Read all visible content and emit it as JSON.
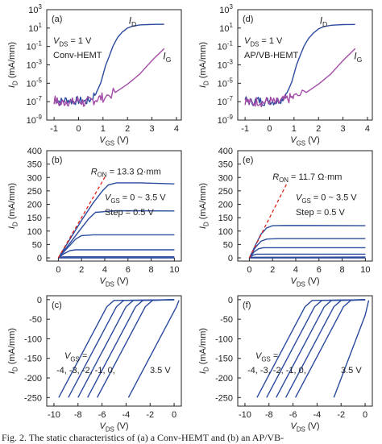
{
  "caption": "Fig. 2. The static characteristics of (a) a Conv-HEMT and (b) an AP/VB-",
  "colors": {
    "id_curve": "#2a4a9e",
    "ig_curve": "#a24aa6",
    "ron_line": "#e2231a",
    "axis": "#222222"
  },
  "chart_data": [
    {
      "panel": "(a)",
      "type": "line",
      "ylabel": "ID (mA/mm)",
      "xlabel": "VGS (V)",
      "yscale": "log",
      "xlim": [
        -1.3,
        4.2
      ],
      "ylim": [
        1e-09,
        1000
      ],
      "xticks": [
        -1,
        0,
        1,
        2,
        3,
        4
      ],
      "yticks": [
        1e-09,
        1e-07,
        1e-05,
        0.001,
        0.1,
        10,
        1000
      ],
      "ytick_labels": [
        [
          "10",
          "-9"
        ],
        [
          "10",
          "-7"
        ],
        [
          "10",
          "-5"
        ],
        [
          "10",
          "-3"
        ],
        [
          "10",
          "-1"
        ],
        [
          "10",
          "1"
        ],
        [
          "10",
          "3"
        ]
      ],
      "annotations": {
        "condition": "VDS = 1 V",
        "device": "Conv-HEMT"
      },
      "series": [
        {
          "name": "ID",
          "color_key": "id_curve",
          "x": [
            -1,
            -0.75,
            -0.5,
            -0.25,
            0,
            0.25,
            0.5,
            0.75,
            0.9,
            1.0,
            1.1,
            1.25,
            1.4,
            1.6,
            1.8,
            2.0,
            2.2,
            2.5,
            3.0,
            3.5
          ],
          "y": [
            2e-07,
            1e-07,
            1.6e-07,
            1.1e-07,
            1.4e-07,
            1e-07,
            1.8e-07,
            1.3e-06,
            1e-05,
            8e-05,
            0.0008,
            0.008,
            0.1,
            1,
            4,
            10,
            16,
            22,
            25,
            26
          ]
        },
        {
          "name": "IG",
          "color_key": "ig_curve",
          "x": [
            -1,
            -0.75,
            -0.5,
            -0.25,
            0,
            0.25,
            0.5,
            0.75,
            1.0,
            1.5,
            2.0,
            2.5,
            3.0,
            3.5
          ],
          "y": [
            1.6e-07,
            6e-08,
            1.2e-07,
            8e-08,
            1.4e-07,
            7e-08,
            1.2e-07,
            2e-07,
            3e-07,
            1e-06,
            8e-06,
            0.0001,
            0.003,
            0.06
          ]
        }
      ]
    },
    {
      "panel": "(d)",
      "type": "line",
      "ylabel": "ID (mA/mm)",
      "xlabel": "VGS (V)",
      "yscale": "log",
      "xlim": [
        -1.3,
        4.2
      ],
      "ylim": [
        1e-09,
        1000
      ],
      "xticks": [
        -1,
        0,
        1,
        2,
        3,
        4
      ],
      "yticks": [
        1e-09,
        1e-07,
        1e-05,
        0.001,
        0.1,
        10,
        1000
      ],
      "ytick_labels": [
        [
          "10",
          "-9"
        ],
        [
          "10",
          "-7"
        ],
        [
          "10",
          "-5"
        ],
        [
          "10",
          "-3"
        ],
        [
          "10",
          "-1"
        ],
        [
          "10",
          "1"
        ],
        [
          "10",
          "3"
        ]
      ],
      "annotations": {
        "condition": "VDS = 1 V",
        "device": "AP/VB-HEMT"
      },
      "series": [
        {
          "name": "ID",
          "color_key": "id_curve",
          "x": [
            -1,
            -0.75,
            -0.5,
            -0.25,
            0,
            0.25,
            0.5,
            0.75,
            0.9,
            1.0,
            1.1,
            1.25,
            1.4,
            1.6,
            1.8,
            2.0,
            2.2,
            2.5,
            3.0,
            3.5
          ],
          "y": [
            1.8e-07,
            8e-08,
            1.5e-07,
            1e-07,
            1.3e-07,
            1e-07,
            2e-07,
            1.5e-06,
            1.2e-05,
            0.0001,
            0.001,
            0.01,
            0.1,
            0.8,
            3,
            8,
            14,
            20,
            24,
            25
          ]
        },
        {
          "name": "IG",
          "color_key": "ig_curve",
          "x": [
            -1,
            -0.75,
            -0.5,
            -0.25,
            0,
            0.25,
            0.5,
            0.75,
            1.0,
            1.5,
            2.0,
            2.5,
            3.0,
            3.5
          ],
          "y": [
            1.5e-07,
            6e-08,
            1.2e-07,
            8e-08,
            1.3e-07,
            7e-08,
            1.2e-07,
            2e-07,
            3e-07,
            1e-06,
            8e-06,
            0.0001,
            0.003,
            0.06
          ]
        }
      ]
    },
    {
      "panel": "(b)",
      "type": "line",
      "ylabel": "ID (mA/mm)",
      "xlabel": "VDS (V)",
      "xlim": [
        -1,
        10.6
      ],
      "ylim": [
        -12,
        400
      ],
      "xticks": [
        0,
        2,
        4,
        6,
        8,
        10
      ],
      "yticks": [
        0,
        50,
        100,
        150,
        200,
        250,
        300,
        350,
        400
      ],
      "annotations": {
        "ron": "RON = 13.3 Ω·mm",
        "vgs_range": "VGS = 0 ~ 3.5 V",
        "step": "Step = 0.5 V"
      },
      "ron_line": {
        "x": [
          0,
          4.1
        ],
        "y": [
          0,
          308
        ]
      },
      "curves": [
        {
          "vgs": 3.5,
          "x": [
            0,
            1,
            2,
            3,
            3.8,
            4.3,
            5,
            7,
            10
          ],
          "y": [
            0,
            70,
            140,
            205,
            250,
            272,
            280,
            280,
            276
          ]
        },
        {
          "vgs": 3.0,
          "x": [
            0,
            1,
            2,
            2.6,
            3.2,
            5,
            10
          ],
          "y": [
            0,
            55,
            112,
            145,
            170,
            176,
            175
          ]
        },
        {
          "vgs": 2.5,
          "x": [
            0,
            0.8,
            1.5,
            2.0,
            3,
            10
          ],
          "y": [
            0,
            38,
            70,
            83,
            86,
            86
          ]
        },
        {
          "vgs": 2.0,
          "x": [
            0,
            0.5,
            1.0,
            1.5,
            10
          ],
          "y": [
            0,
            16,
            27,
            30,
            30
          ]
        },
        {
          "vgs": 1.5,
          "x": [
            0,
            0.3,
            0.6,
            10
          ],
          "y": [
            0,
            3,
            4,
            4
          ]
        },
        {
          "vgs": 1.0,
          "x": [
            0,
            10
          ],
          "y": [
            0,
            0
          ]
        }
      ]
    },
    {
      "panel": "(e)",
      "type": "line",
      "ylabel": "ID (mA/mm)",
      "xlabel": "VDS (V)",
      "xlim": [
        -1,
        10.6
      ],
      "ylim": [
        -12,
        400
      ],
      "xticks": [
        0,
        2,
        4,
        6,
        8,
        10
      ],
      "yticks": [
        0,
        50,
        100,
        150,
        200,
        250,
        300,
        350,
        400
      ],
      "annotations": {
        "ron": "RON = 11.7 Ω·mm",
        "vgs_range": "VGS = 0 ~ 3.5 V",
        "step": "Step = 0.5 V"
      },
      "ron_line": {
        "x": [
          0,
          3.2
        ],
        "y": [
          0,
          275
        ]
      },
      "curves": [
        {
          "vgs": 3.5,
          "x": [
            0,
            0.5,
            1.0,
            1.5,
            2.0,
            3,
            10
          ],
          "y": [
            0,
            45,
            88,
            112,
            120,
            121,
            120
          ]
        },
        {
          "vgs": 3.0,
          "x": [
            0,
            0.5,
            1.0,
            1.5,
            2.5,
            10
          ],
          "y": [
            0,
            38,
            62,
            70,
            72,
            72
          ]
        },
        {
          "vgs": 2.5,
          "x": [
            0,
            0.4,
            0.8,
            1.2,
            10
          ],
          "y": [
            0,
            22,
            34,
            38,
            38
          ]
        },
        {
          "vgs": 2.0,
          "x": [
            0,
            0.3,
            0.6,
            10
          ],
          "y": [
            0,
            10,
            14,
            14
          ]
        },
        {
          "vgs": 1.5,
          "x": [
            0,
            0.2,
            10
          ],
          "y": [
            0,
            2,
            3
          ]
        },
        {
          "vgs": 1.0,
          "x": [
            0,
            10
          ],
          "y": [
            0,
            0
          ]
        }
      ]
    },
    {
      "panel": "(c)",
      "type": "line",
      "ylabel": "ID (mA/mm)",
      "xlabel": "VDS (V)",
      "xlim": [
        -10.6,
        0.6
      ],
      "ylim": [
        -272,
        10
      ],
      "xticks": [
        -10,
        -8,
        -6,
        -4,
        -2,
        0
      ],
      "yticks": [
        -250,
        -200,
        -150,
        -100,
        -50,
        0
      ],
      "annotations": {
        "vgs_label": "VGS =",
        "vgs_values": "-4, -3, -2, -1, 0,",
        "vgs_last": "3.5 V"
      },
      "curves": [
        {
          "vgs": -4,
          "x": [
            -9.6,
            -5.6,
            -5.0,
            0
          ],
          "y": [
            -250,
            -18,
            -2,
            0
          ]
        },
        {
          "vgs": -3,
          "x": [
            -8.8,
            -4.8,
            -4.2,
            0
          ],
          "y": [
            -250,
            -18,
            -2,
            0
          ]
        },
        {
          "vgs": -2,
          "x": [
            -8.0,
            -4.0,
            -3.4,
            0
          ],
          "y": [
            -250,
            -18,
            -2,
            0
          ]
        },
        {
          "vgs": -1,
          "x": [
            -7.2,
            -3.2,
            -2.6,
            0
          ],
          "y": [
            -250,
            -18,
            -2,
            0
          ]
        },
        {
          "vgs": 0,
          "x": [
            -6.4,
            -2.4,
            -1.8,
            0
          ],
          "y": [
            -250,
            -18,
            -2,
            0
          ]
        },
        {
          "vgs": 3.5,
          "x": [
            -3.8,
            0.2,
            0.4
          ],
          "y": [
            -250,
            -18,
            -2
          ]
        }
      ]
    },
    {
      "panel": "(f)",
      "type": "line",
      "ylabel": "ID (mA/mm)",
      "xlabel": "VDS (V)",
      "xlim": [
        -10.6,
        0.6
      ],
      "ylim": [
        -272,
        10
      ],
      "xticks": [
        -10,
        -8,
        -6,
        -4,
        -2,
        0
      ],
      "yticks": [
        -250,
        -200,
        -150,
        -100,
        -50,
        0
      ],
      "annotations": {
        "vgs_label": "VGS =",
        "vgs_values": "-4, -3, -2, -1, 0,",
        "vgs_last": "3.5 V"
      },
      "curves": [
        {
          "vgs": -4,
          "x": [
            -9.0,
            -5.0,
            -4.4,
            0
          ],
          "y": [
            -250,
            -18,
            -2,
            0
          ]
        },
        {
          "vgs": -3,
          "x": [
            -8.2,
            -4.2,
            -3.6,
            0
          ],
          "y": [
            -250,
            -18,
            -2,
            0
          ]
        },
        {
          "vgs": -2,
          "x": [
            -7.4,
            -3.4,
            -2.8,
            0
          ],
          "y": [
            -250,
            -18,
            -2,
            0
          ]
        },
        {
          "vgs": -1,
          "x": [
            -6.6,
            -2.6,
            -2.0,
            0
          ],
          "y": [
            -250,
            -18,
            -2,
            0
          ]
        },
        {
          "vgs": 0,
          "x": [
            -5.8,
            -1.8,
            -1.2,
            0
          ],
          "y": [
            -250,
            -18,
            -2,
            0
          ]
        },
        {
          "vgs": 3.5,
          "x": [
            -2.6,
            0.0,
            0.3
          ],
          "y": [
            -250,
            -40,
            -2
          ]
        }
      ]
    }
  ]
}
